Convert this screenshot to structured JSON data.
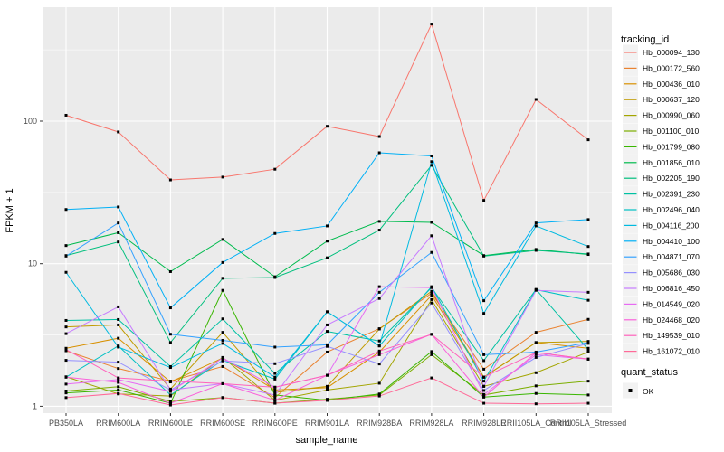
{
  "chart_data": {
    "type": "line",
    "title": "",
    "xlabel": "sample_name",
    "ylabel": "FPKM + 1",
    "yscale": "log10",
    "y_tick_labels": [
      "1",
      "10",
      "100"
    ],
    "y_ticks": [
      1,
      10,
      100
    ],
    "y_minor_ticks": [
      3.162,
      31.62,
      316.2
    ],
    "ylim": [
      0.93,
      560
    ],
    "grid": true,
    "legend_position": "right",
    "legend_title": "tracking_id",
    "quant_status": {
      "title": "quant_status",
      "label": "OK",
      "marker": "black-square"
    },
    "panel_bg": "#EBEBEB",
    "grid_color": "#FFFFFF",
    "tick_label_color": "#4D4D4D",
    "tick_mark_color": "#333333",
    "legend_key_bg": "#F2F2F2",
    "point_color": "#000000",
    "categories": [
      "PB350LA",
      "RRIM600LA",
      "RRIM600LE",
      "RRIM600SE",
      "RRIM600PE",
      "RRIM901LA",
      "RRIM928BA",
      "RRIM928LA",
      "RRIM928LE",
      "RRII105LA_Control",
      "RRII105LA_Stressed"
    ],
    "series": [
      {
        "tracking_id": "Hb_000094_130",
        "color": "#F8766D",
        "values": [
          110,
          84,
          38.7,
          40.5,
          46,
          92,
          78,
          480,
          27.8,
          142,
          74
        ]
      },
      {
        "tracking_id": "Hb_000172_560",
        "color": "#EA8331",
        "values": [
          2.45,
          1.84,
          1.5,
          1.9,
          1.15,
          2.4,
          3.5,
          6.2,
          1.82,
          3.3,
          4.07
        ]
      },
      {
        "tracking_id": "Hb_000436_010",
        "color": "#D89000",
        "values": [
          2.55,
          3.0,
          1.48,
          2.18,
          1.3,
          1.35,
          2.4,
          6.0,
          1.6,
          2.8,
          2.55
        ]
      },
      {
        "tracking_id": "Hb_000637_120",
        "color": "#C09B00",
        "values": [
          3.6,
          3.72,
          1.32,
          3.3,
          1.25,
          1.38,
          3.48,
          6.4,
          1.6,
          2.8,
          2.85
        ]
      },
      {
        "tracking_id": "Hb_000990_060",
        "color": "#A3A500",
        "values": [
          1.61,
          1.22,
          1.18,
          2.2,
          1.1,
          1.3,
          1.45,
          5.6,
          1.38,
          1.72,
          2.4
        ]
      },
      {
        "tracking_id": "Hb_001100_010",
        "color": "#7CAE00",
        "values": [
          1.28,
          1.37,
          1.08,
          1.15,
          1.05,
          1.12,
          1.2,
          2.3,
          1.2,
          1.39,
          1.5
        ]
      },
      {
        "tracking_id": "Hb_001799_080",
        "color": "#39B600",
        "values": [
          1.24,
          1.3,
          1.05,
          6.5,
          1.2,
          1.1,
          1.22,
          2.42,
          1.16,
          1.23,
          1.2
        ]
      },
      {
        "tracking_id": "Hb_001856_010",
        "color": "#00BB4E",
        "values": [
          13.4,
          16.5,
          8.8,
          14.8,
          8.1,
          14.4,
          19.8,
          19.5,
          11.4,
          12.6,
          11.6
        ]
      },
      {
        "tracking_id": "Hb_002205_190",
        "color": "#00BF7D",
        "values": [
          11.4,
          14.2,
          2.8,
          7.9,
          8.0,
          11.0,
          17.2,
          49,
          11.3,
          12.4,
          11.7
        ]
      },
      {
        "tracking_id": "Hb_002391_230",
        "color": "#00C1A3",
        "values": [
          4.0,
          4.06,
          1.9,
          4.1,
          1.7,
          3.35,
          2.87,
          6.8,
          2.09,
          6.6,
          2.5
        ]
      },
      {
        "tracking_id": "Hb_002496_040",
        "color": "#00C0C4",
        "values": [
          1.6,
          2.65,
          1.2,
          2.1,
          1.55,
          4.6,
          2.65,
          6.9,
          1.5,
          6.57,
          5.54
        ]
      },
      {
        "tracking_id": "Hb_004116_200",
        "color": "#00BAE0",
        "values": [
          8.7,
          2.6,
          1.87,
          2.76,
          1.6,
          4.6,
          2.65,
          52,
          4.48,
          18.4,
          13.2
        ]
      },
      {
        "tracking_id": "Hb_004410_100",
        "color": "#00B0F6",
        "values": [
          24,
          25,
          4.9,
          10.2,
          16.3,
          18.4,
          60,
          57,
          5.5,
          19.3,
          20.4
        ]
      },
      {
        "tracking_id": "Hb_004871_070",
        "color": "#35A2FF",
        "values": [
          11.3,
          19.3,
          3.2,
          2.9,
          2.6,
          2.7,
          6.3,
          12.0,
          2.3,
          2.4,
          2.8
        ]
      },
      {
        "tracking_id": "Hb_005686_030",
        "color": "#9590FF",
        "values": [
          2.1,
          2.04,
          1.3,
          2.08,
          1.99,
          2.63,
          1.98,
          5.3,
          1.29,
          2.2,
          2.76
        ]
      },
      {
        "tracking_id": "Hb_006816_450",
        "color": "#C77CFF",
        "values": [
          3.23,
          4.98,
          1.3,
          1.44,
          1.2,
          3.72,
          5.7,
          15.7,
          1.38,
          6.5,
          6.3
        ]
      },
      {
        "tracking_id": "Hb_014549_020",
        "color": "#E76BF3",
        "values": [
          1.43,
          1.54,
          1.27,
          2.18,
          1.36,
          1.65,
          6.9,
          6.8,
          1.21,
          2.3,
          2.14
        ]
      },
      {
        "tracking_id": "Hb_024468_020",
        "color": "#FA62DB",
        "values": [
          1.6,
          1.47,
          1.05,
          1.44,
          1.1,
          1.65,
          2.3,
          3.2,
          1.16,
          2.38,
          2.14
        ]
      },
      {
        "tracking_id": "Hb_149539_010",
        "color": "#FF62BC",
        "values": [
          2.5,
          1.58,
          1.5,
          1.44,
          1.36,
          1.65,
          2.44,
          3.19,
          1.6,
          2.38,
          2.14
        ]
      },
      {
        "tracking_id": "Hb_161072_010",
        "color": "#FF6A98",
        "values": [
          1.15,
          1.23,
          1.02,
          1.15,
          1.05,
          1.1,
          1.18,
          1.58,
          1.05,
          1.04,
          1.05
        ]
      }
    ]
  }
}
